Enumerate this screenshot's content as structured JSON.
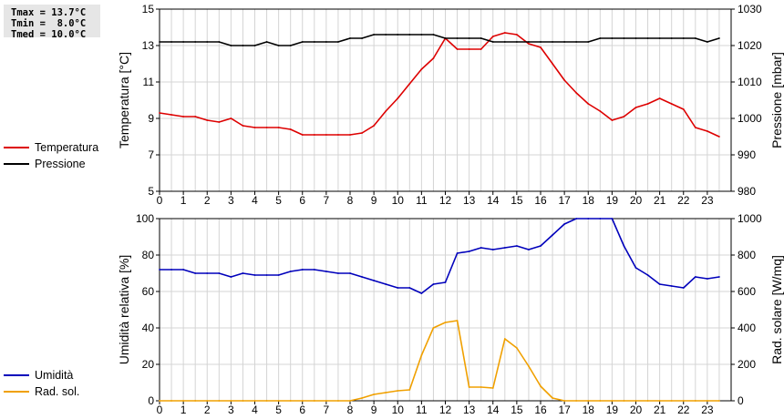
{
  "stats": [
    "Tmax = 13.7°C",
    "Tmin =  8.0°C",
    "Tmed = 10.0°C"
  ],
  "chart_data": [
    {
      "type": "line",
      "x": [
        0,
        0.5,
        1,
        1.5,
        2,
        2.5,
        3,
        3.5,
        4,
        4.5,
        5,
        5.5,
        6,
        6.5,
        7,
        7.5,
        8,
        8.5,
        9,
        9.5,
        10,
        10.5,
        11,
        11.5,
        12,
        12.5,
        13,
        13.5,
        14,
        14.5,
        15,
        15.5,
        16,
        16.5,
        17,
        17.5,
        18,
        18.5,
        19,
        19.5,
        20,
        20.5,
        21,
        21.5,
        22,
        22.5,
        23,
        23.5
      ],
      "xlim": [
        0,
        24
      ],
      "xticks": [
        "0",
        "1",
        "2",
        "3",
        "4",
        "5",
        "6",
        "7",
        "8",
        "9",
        "10",
        "11",
        "12",
        "13",
        "14",
        "15",
        "16",
        "17",
        "18",
        "19",
        "20",
        "21",
        "22",
        "23"
      ],
      "ylabel": "Temperatura [°C]",
      "ylim": [
        5,
        15
      ],
      "yticks": [
        "5",
        "7",
        "9",
        "11",
        "13",
        "15"
      ],
      "y2label": "Pressione [mbar]",
      "y2lim": [
        980,
        1030
      ],
      "y2ticks": [
        "980",
        "990",
        "1000",
        "1010",
        "1020",
        "1030"
      ],
      "grid": true,
      "series": [
        {
          "name": "Temperatura",
          "axis": "left",
          "color": "#dd0000",
          "values": [
            9.3,
            9.2,
            9.1,
            9.1,
            8.9,
            8.8,
            9.0,
            8.6,
            8.5,
            8.5,
            8.5,
            8.4,
            8.1,
            8.1,
            8.1,
            8.1,
            8.1,
            8.2,
            8.6,
            9.4,
            10.1,
            10.9,
            11.7,
            12.3,
            13.4,
            12.8,
            12.8,
            12.8,
            13.5,
            13.7,
            13.6,
            13.1,
            12.9,
            12.0,
            11.1,
            10.4,
            9.8,
            9.4,
            8.9,
            9.1,
            9.6,
            9.8,
            10.1,
            9.8,
            9.5,
            8.5,
            8.3,
            8.0
          ]
        },
        {
          "name": "Pressione",
          "axis": "right",
          "color": "#000000",
          "values": [
            1021,
            1021,
            1021,
            1021,
            1021,
            1021,
            1020,
            1020,
            1020,
            1021,
            1020,
            1020,
            1021,
            1021,
            1021,
            1021,
            1022,
            1022,
            1023,
            1023,
            1023,
            1023,
            1023,
            1023,
            1022,
            1022,
            1022,
            1022,
            1021,
            1021,
            1021,
            1021,
            1021,
            1021,
            1021,
            1021,
            1021,
            1022,
            1022,
            1022,
            1022,
            1022,
            1022,
            1022,
            1022,
            1022,
            1021,
            1022
          ]
        }
      ]
    },
    {
      "type": "line",
      "x": [
        0,
        0.5,
        1,
        1.5,
        2,
        2.5,
        3,
        3.5,
        4,
        4.5,
        5,
        5.5,
        6,
        6.5,
        7,
        7.5,
        8,
        8.5,
        9,
        9.5,
        10,
        10.5,
        11,
        11.5,
        12,
        12.5,
        13,
        13.5,
        14,
        14.5,
        15,
        15.5,
        16,
        16.5,
        17,
        17.5,
        18,
        18.5,
        19,
        19.5,
        20,
        20.5,
        21,
        21.5,
        22,
        22.5,
        23,
        23.5
      ],
      "xlim": [
        0,
        24
      ],
      "xticks": [
        "0",
        "1",
        "2",
        "3",
        "4",
        "5",
        "6",
        "7",
        "8",
        "9",
        "10",
        "11",
        "12",
        "13",
        "14",
        "15",
        "16",
        "17",
        "18",
        "19",
        "20",
        "21",
        "22",
        "23"
      ],
      "ylabel": "Umidità relativa [%]",
      "ylim": [
        0,
        100
      ],
      "yticks": [
        "0",
        "20",
        "40",
        "60",
        "80",
        "100"
      ],
      "y2label": "Rad. solare [W/mq]",
      "y2lim": [
        0,
        1000
      ],
      "y2ticks": [
        "0",
        "200",
        "400",
        "600",
        "800",
        "1000"
      ],
      "grid": true,
      "series": [
        {
          "name": "Umidità",
          "axis": "left",
          "color": "#0000bb",
          "values": [
            72,
            72,
            72,
            70,
            70,
            70,
            68,
            70,
            69,
            69,
            69,
            71,
            72,
            72,
            71,
            70,
            70,
            68,
            66,
            64,
            62,
            62,
            59,
            64,
            65,
            81,
            82,
            84,
            83,
            84,
            85,
            83,
            85,
            91,
            97,
            100,
            100,
            100,
            100,
            85,
            73,
            69,
            64,
            63,
            62,
            68,
            67,
            68
          ]
        },
        {
          "name": "Rad. sol.",
          "axis": "right",
          "color": "#f0a000",
          "values": [
            0,
            0,
            0,
            0,
            0,
            0,
            0,
            0,
            0,
            0,
            0,
            0,
            0,
            0,
            0,
            0,
            0,
            15,
            35,
            45,
            55,
            60,
            250,
            400,
            430,
            440,
            75,
            75,
            70,
            340,
            290,
            190,
            80,
            15,
            0,
            0,
            0,
            0,
            0,
            0,
            0,
            0,
            0,
            0,
            0,
            0,
            0,
            0
          ]
        }
      ]
    }
  ]
}
